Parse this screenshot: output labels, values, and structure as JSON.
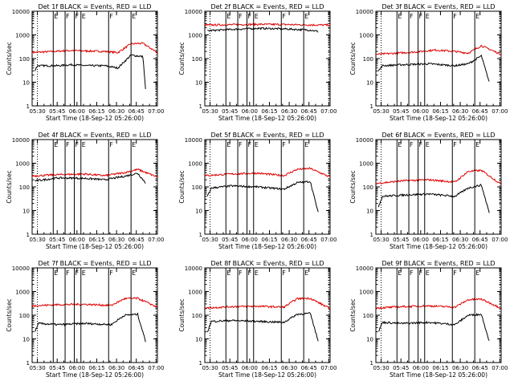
{
  "chart_data": [
    {
      "type": "line",
      "title": "Det 1f BLACK = Events, RED = LLD",
      "xlabel": "Start Time (18-Sep-12 05:26:00)",
      "ylabel": "Counts/sec",
      "xticks": [
        "05:30",
        "05:45",
        "06:00",
        "06:15",
        "06:30",
        "06:45",
        "07:00"
      ],
      "yticks": [
        "1",
        "10",
        "100",
        "1000",
        "10000"
      ],
      "xlim_minutes": [
        0,
        95
      ],
      "yscale": "log",
      "ylim": [
        1,
        10000
      ],
      "markers": [
        "E",
        "F",
        "F",
        "E",
        "F",
        "E"
      ],
      "series": [
        {
          "color": "#e00000",
          "x": [
            0,
            30,
            40,
            55,
            65,
            75,
            84,
            95
          ],
          "y": [
            180,
            220,
            210,
            200,
            180,
            420,
            440,
            180
          ]
        },
        {
          "color": "#000000",
          "x": [
            2,
            4,
            10,
            20,
            30,
            42,
            55,
            65,
            75,
            84,
            86
          ],
          "y": [
            30,
            50,
            50,
            50,
            55,
            50,
            50,
            40,
            140,
            120,
            5
          ]
        }
      ]
    },
    {
      "type": "line",
      "title": "Det 2f BLACK = Events, RED = LLD",
      "xlabel": "Start Time (18-Sep-12 05:26:00)",
      "ylabel": "Counts/sec",
      "xticks": [
        "05:30",
        "05:45",
        "06:00",
        "06:15",
        "06:30",
        "06:45",
        "07:00"
      ],
      "yticks": [
        "1",
        "10",
        "100",
        "1000",
        "10000"
      ],
      "xlim_minutes": [
        0,
        95
      ],
      "yscale": "log",
      "ylim": [
        1,
        10000
      ],
      "markers": [
        "E",
        "F",
        "F",
        "E",
        "F",
        "E"
      ],
      "series": [
        {
          "color": "#e00000",
          "x": [
            0,
            20,
            40,
            60,
            80,
            95
          ],
          "y": [
            2600,
            2700,
            2800,
            2750,
            2650,
            2600
          ]
        },
        {
          "color": "#000000",
          "x": [
            2,
            20,
            40,
            60,
            80,
            86
          ],
          "y": [
            1500,
            1700,
            1900,
            1800,
            1600,
            1400
          ]
        }
      ]
    },
    {
      "type": "line",
      "title": "Det 3f BLACK = Events, RED = LLD",
      "xlabel": "Start Time (18-Sep-12 05:26:00)",
      "ylabel": "Counts/sec",
      "xticks": [
        "05:30",
        "05:45",
        "06:00",
        "06:15",
        "06:30",
        "06:45",
        "07:00"
      ],
      "yticks": [
        "1",
        "10",
        "100",
        "1000",
        "10000"
      ],
      "xlim_minutes": [
        0,
        95
      ],
      "yscale": "log",
      "ylim": [
        1,
        10000
      ],
      "markers": [
        "E",
        "F",
        "F",
        "E",
        "F",
        "E"
      ],
      "series": [
        {
          "color": "#e00000",
          "x": [
            0,
            30,
            45,
            60,
            70,
            80,
            95
          ],
          "y": [
            150,
            190,
            230,
            200,
            170,
            350,
            150
          ]
        },
        {
          "color": "#000000",
          "x": [
            2,
            5,
            20,
            40,
            60,
            70,
            80,
            86
          ],
          "y": [
            30,
            50,
            55,
            60,
            50,
            60,
            130,
            10
          ]
        }
      ]
    },
    {
      "type": "line",
      "title": "Det 4f BLACK = Events, RED = LLD",
      "xlabel": "Start Time (18-Sep-12 05:26:00)",
      "ylabel": "Counts/sec",
      "xticks": [
        "05:30",
        "05:45",
        "06:00",
        "06:15",
        "06:30",
        "06:45",
        "07:00"
      ],
      "yticks": [
        "1",
        "10",
        "100",
        "1000",
        "10000"
      ],
      "xlim_minutes": [
        0,
        95
      ],
      "yscale": "log",
      "ylim": [
        1,
        10000
      ],
      "markers": [
        "E",
        "F",
        "F",
        "E",
        "F",
        "E"
      ],
      "series": [
        {
          "color": "#e00000",
          "x": [
            0,
            20,
            40,
            55,
            70,
            80,
            95
          ],
          "y": [
            290,
            330,
            350,
            300,
            400,
            550,
            260
          ]
        },
        {
          "color": "#000000",
          "x": [
            2,
            20,
            40,
            55,
            70,
            80,
            86
          ],
          "y": [
            180,
            240,
            230,
            200,
            280,
            380,
            150
          ]
        }
      ]
    },
    {
      "type": "line",
      "title": "Det 5f BLACK = Events, RED = LLD",
      "xlabel": "Start Time (18-Sep-12 05:26:00)",
      "ylabel": "Counts/sec",
      "xticks": [
        "05:30",
        "05:45",
        "06:00",
        "06:15",
        "06:30",
        "06:45",
        "07:00"
      ],
      "yticks": [
        "1",
        "10",
        "100",
        "1000",
        "10000"
      ],
      "xlim_minutes": [
        0,
        95
      ],
      "yscale": "log",
      "ylim": [
        1,
        10000
      ],
      "markers": [
        "E",
        "F",
        "F",
        "E",
        "F",
        "E"
      ],
      "series": [
        {
          "color": "#e00000",
          "x": [
            0,
            20,
            40,
            60,
            70,
            80,
            95
          ],
          "y": [
            300,
            350,
            380,
            300,
            550,
            600,
            260
          ]
        },
        {
          "color": "#000000",
          "x": [
            2,
            5,
            20,
            40,
            60,
            70,
            80,
            86
          ],
          "y": [
            40,
            90,
            110,
            100,
            80,
            150,
            170,
            8
          ]
        }
      ]
    },
    {
      "type": "line",
      "title": "Det 6f BLACK = Events, RED = LLD",
      "xlabel": "Start Time (18-Sep-12 05:26:00)",
      "ylabel": "Counts/sec",
      "xticks": [
        "05:30",
        "05:45",
        "06:00",
        "06:15",
        "06:30",
        "06:45",
        "07:00"
      ],
      "yticks": [
        "1",
        "10",
        "100",
        "1000",
        "10000"
      ],
      "xlim_minutes": [
        0,
        95
      ],
      "yscale": "log",
      "ylim": [
        1,
        10000
      ],
      "markers": [
        "E",
        "F",
        "F",
        "E",
        "F",
        "E"
      ],
      "series": [
        {
          "color": "#e00000",
          "x": [
            0,
            20,
            40,
            60,
            70,
            80,
            95
          ],
          "y": [
            140,
            180,
            200,
            160,
            450,
            500,
            130
          ]
        },
        {
          "color": "#000000",
          "x": [
            2,
            5,
            20,
            40,
            60,
            70,
            80,
            86
          ],
          "y": [
            15,
            40,
            45,
            50,
            40,
            90,
            120,
            8
          ]
        }
      ]
    },
    {
      "type": "line",
      "title": "Det 7f BLACK = Events, RED = LLD",
      "xlabel": "Start Time (18-Sep-12 05:26:00)",
      "ylabel": "Counts/sec",
      "xticks": [
        "05:30",
        "05:45",
        "06:00",
        "06:15",
        "06:30",
        "06:45",
        "07:00"
      ],
      "yticks": [
        "1",
        "10",
        "100",
        "1000",
        "10000"
      ],
      "xlim_minutes": [
        0,
        95
      ],
      "yscale": "log",
      "ylim": [
        1,
        10000
      ],
      "markers": [
        "E",
        "F",
        "F",
        "E",
        "F",
        "E"
      ],
      "series": [
        {
          "color": "#e00000",
          "x": [
            0,
            20,
            40,
            60,
            70,
            80,
            95
          ],
          "y": [
            250,
            280,
            290,
            260,
            500,
            520,
            220
          ]
        },
        {
          "color": "#000000",
          "x": [
            2,
            5,
            20,
            40,
            60,
            70,
            80,
            86
          ],
          "y": [
            20,
            45,
            40,
            45,
            40,
            100,
            110,
            8
          ]
        }
      ]
    },
    {
      "type": "line",
      "title": "Det 8f BLACK = Events, RED = LLD",
      "xlabel": "Start Time (18-Sep-12 05:26:00)",
      "ylabel": "Counts/sec",
      "xticks": [
        "05:30",
        "05:45",
        "06:00",
        "06:15",
        "06:30",
        "06:45",
        "07:00"
      ],
      "yticks": [
        "1",
        "10",
        "100",
        "1000",
        "10000"
      ],
      "xlim_minutes": [
        0,
        95
      ],
      "yscale": "log",
      "ylim": [
        1,
        10000
      ],
      "markers": [
        "E",
        "F",
        "F",
        "E",
        "F",
        "E"
      ],
      "series": [
        {
          "color": "#e00000",
          "x": [
            0,
            20,
            40,
            60,
            70,
            80,
            95
          ],
          "y": [
            200,
            230,
            240,
            220,
            500,
            520,
            190
          ]
        },
        {
          "color": "#000000",
          "x": [
            2,
            5,
            20,
            40,
            60,
            70,
            80,
            86
          ],
          "y": [
            20,
            55,
            60,
            55,
            50,
            110,
            120,
            8
          ]
        }
      ]
    },
    {
      "type": "line",
      "title": "Det 9f BLACK = Events, RED = LLD",
      "xlabel": "Start Time (18-Sep-12 05:26:00)",
      "ylabel": "Counts/sec",
      "xticks": [
        "05:30",
        "05:45",
        "06:00",
        "06:15",
        "06:30",
        "06:45",
        "07:00"
      ],
      "yticks": [
        "1",
        "10",
        "100",
        "1000",
        "10000"
      ],
      "xlim_minutes": [
        0,
        95
      ],
      "yscale": "log",
      "ylim": [
        1,
        10000
      ],
      "markers": [
        "E",
        "F",
        "F",
        "E",
        "F",
        "E"
      ],
      "series": [
        {
          "color": "#e00000",
          "x": [
            0,
            20,
            40,
            60,
            70,
            80,
            95
          ],
          "y": [
            200,
            230,
            250,
            220,
            450,
            480,
            200
          ]
        },
        {
          "color": "#000000",
          "x": [
            2,
            5,
            20,
            40,
            60,
            70,
            80,
            86
          ],
          "y": [
            20,
            50,
            45,
            50,
            40,
            100,
            110,
            8
          ]
        }
      ]
    }
  ]
}
